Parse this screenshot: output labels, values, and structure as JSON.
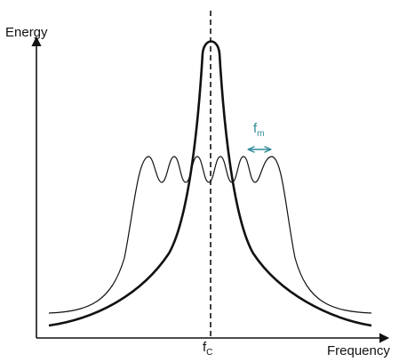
{
  "axes": {
    "y_label": "Energy",
    "x_label": "Frequency"
  },
  "markers": {
    "carrier": {
      "base": "f",
      "sub": "C"
    },
    "modulation": {
      "base": "f",
      "sub": "m"
    }
  },
  "colors": {
    "ink": "#111111",
    "accent": "#2e8b99"
  }
}
